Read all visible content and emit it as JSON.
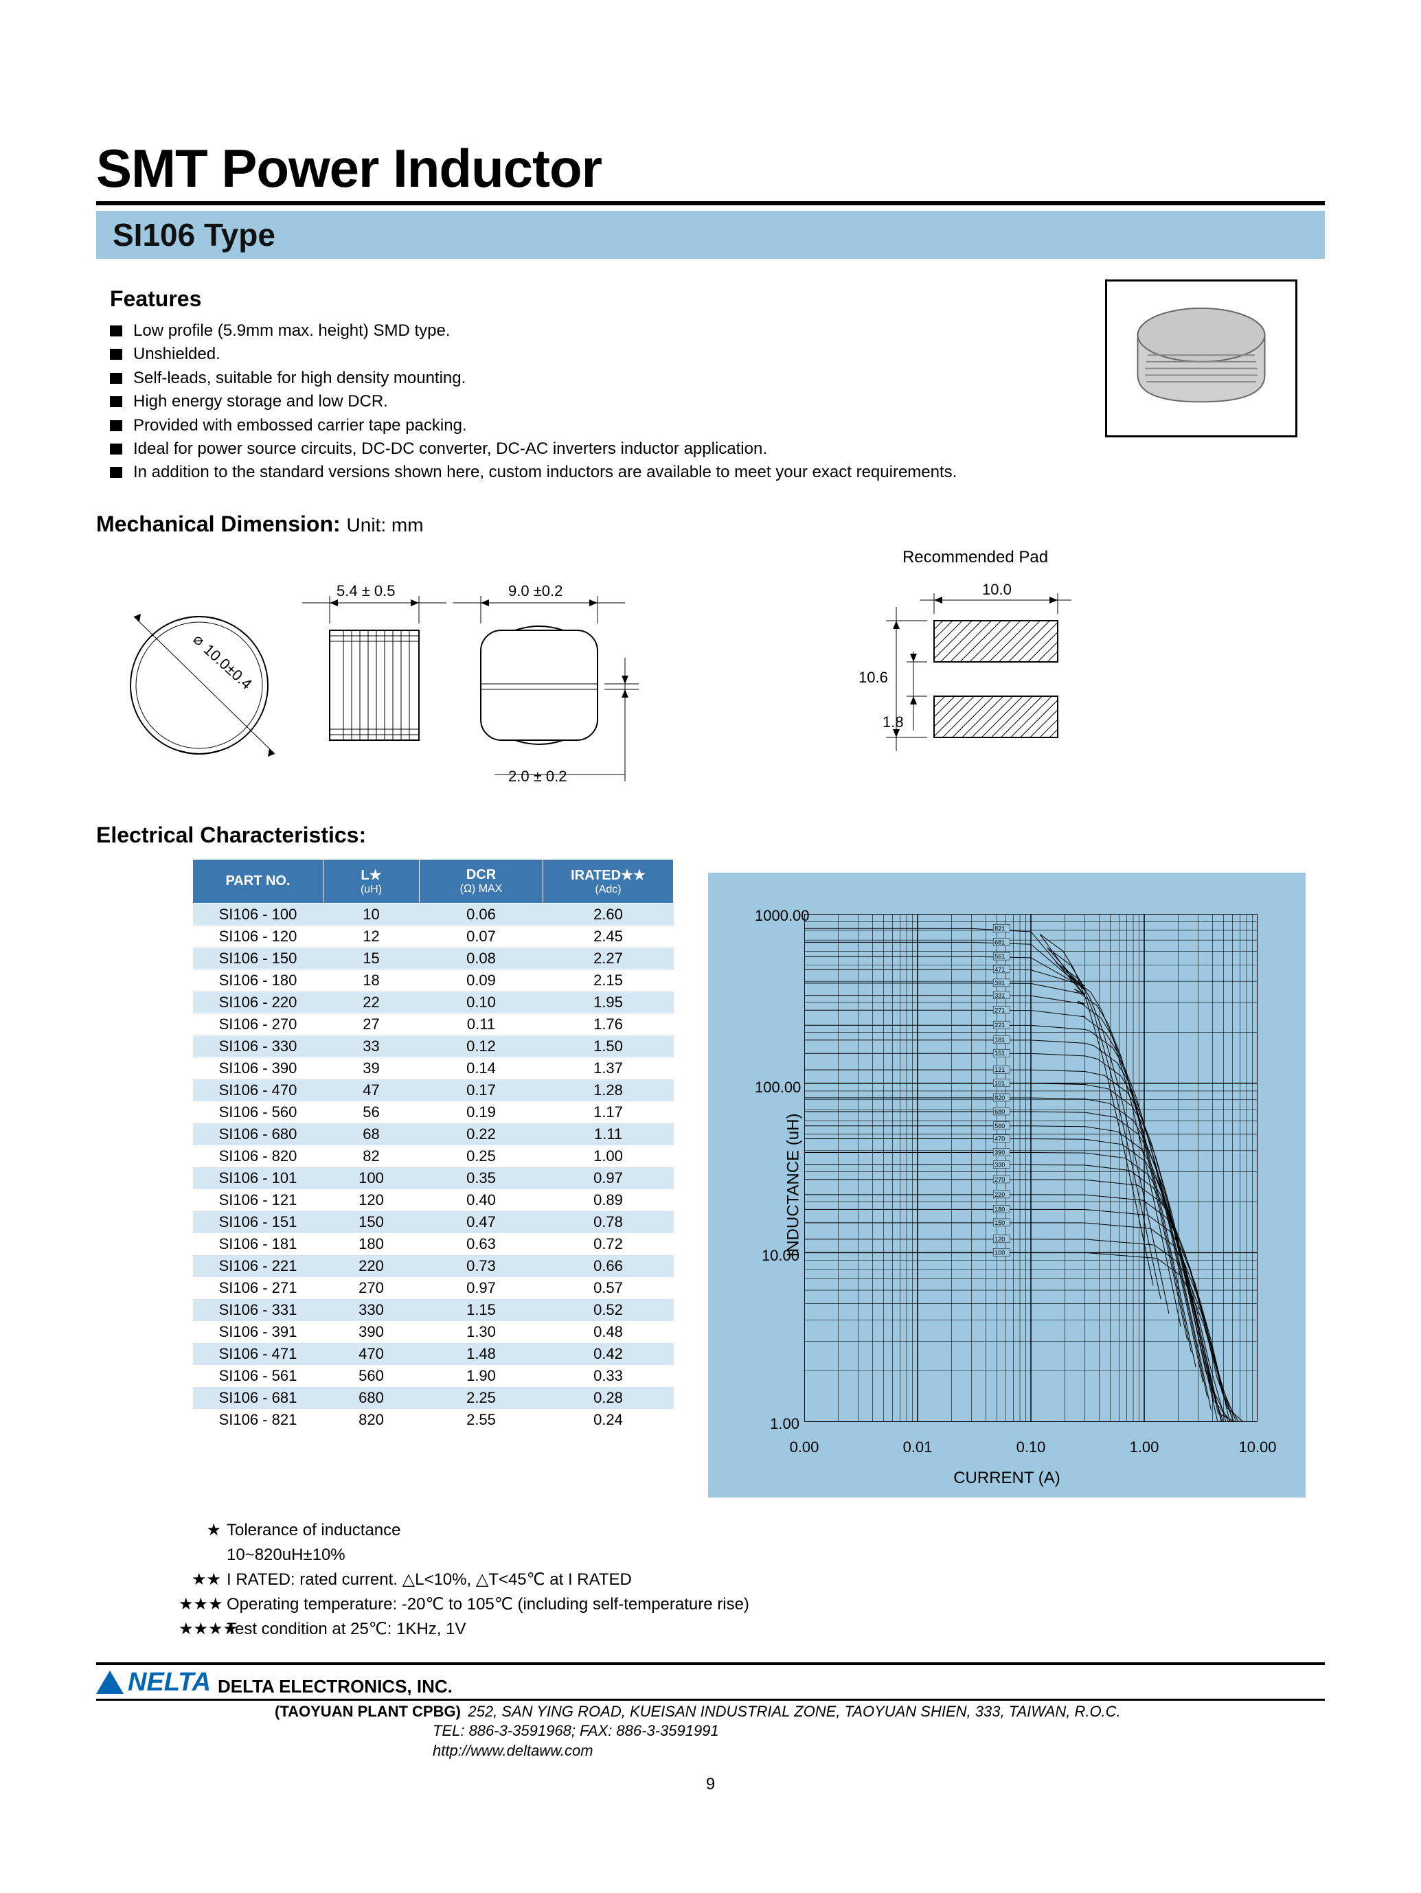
{
  "title": "SMT Power Inductor",
  "type_label": "SI106 Type",
  "features": {
    "heading": "Features",
    "items": [
      "Low profile (5.9mm max. height) SMD type.",
      "Unshielded.",
      "Self-leads, suitable for high density mounting.",
      "High energy storage and low DCR.",
      "Provided with embossed carrier tape packing.",
      "Ideal for power source circuits, DC-DC converter, DC-AC inverters inductor application.",
      "In addition to the standard versions shown here, custom inductors are available to meet your exact requirements."
    ]
  },
  "mech": {
    "heading": "Mechanical Dimension:",
    "unit": "Unit: mm",
    "rec_pad_label": "Recommended Pad",
    "dims": {
      "diameter": "10.0±0.4",
      "width": "5.4 ± 0.5",
      "depth": "9.0 ±0.2",
      "gap": "2.0 ± 0.2",
      "pad_w": "10.0",
      "pad_h": "10.6",
      "pad_gap": "1.8"
    }
  },
  "elec": {
    "heading": "Electrical Characteristics:",
    "columns": {
      "c1": "PART NO.",
      "c2_top": "L★",
      "c2_sub": "(uH)",
      "c3_top": "DCR",
      "c3_sub": "(Ω) MAX",
      "c4_top": "IRATED★★",
      "c4_sub": "(Adc)"
    },
    "rows": [
      [
        "SI106 - 100",
        "10",
        "0.06",
        "2.60"
      ],
      [
        "SI106 - 120",
        "12",
        "0.07",
        "2.45"
      ],
      [
        "SI106 - 150",
        "15",
        "0.08",
        "2.27"
      ],
      [
        "SI106 - 180",
        "18",
        "0.09",
        "2.15"
      ],
      [
        "SI106 - 220",
        "22",
        "0.10",
        "1.95"
      ],
      [
        "SI106 - 270",
        "27",
        "0.11",
        "1.76"
      ],
      [
        "SI106 - 330",
        "33",
        "0.12",
        "1.50"
      ],
      [
        "SI106 - 390",
        "39",
        "0.14",
        "1.37"
      ],
      [
        "SI106 - 470",
        "47",
        "0.17",
        "1.28"
      ],
      [
        "SI106 - 560",
        "56",
        "0.19",
        "1.17"
      ],
      [
        "SI106 - 680",
        "68",
        "0.22",
        "1.11"
      ],
      [
        "SI106 - 820",
        "82",
        "0.25",
        "1.00"
      ],
      [
        "SI106 - 101",
        "100",
        "0.35",
        "0.97"
      ],
      [
        "SI106 - 121",
        "120",
        "0.40",
        "0.89"
      ],
      [
        "SI106 - 151",
        "150",
        "0.47",
        "0.78"
      ],
      [
        "SI106 - 181",
        "180",
        "0.63",
        "0.72"
      ],
      [
        "SI106 - 221",
        "220",
        "0.73",
        "0.66"
      ],
      [
        "SI106 - 271",
        "270",
        "0.97",
        "0.57"
      ],
      [
        "SI106 - 331",
        "330",
        "1.15",
        "0.52"
      ],
      [
        "SI106 - 391",
        "390",
        "1.30",
        "0.48"
      ],
      [
        "SI106 - 471",
        "470",
        "1.48",
        "0.42"
      ],
      [
        "SI106 - 561",
        "560",
        "1.90",
        "0.33"
      ],
      [
        "SI106 - 681",
        "680",
        "2.25",
        "0.28"
      ],
      [
        "SI106 - 821",
        "820",
        "2.55",
        "0.24"
      ]
    ]
  },
  "chart": {
    "type": "line",
    "ylabel": "INDUCTANCE (uH)",
    "xlabel": "CURRENT (A)",
    "xscale": "log",
    "yscale": "log",
    "xlim": [
      0.001,
      10
    ],
    "ylim": [
      1,
      1000
    ],
    "xticks": [
      "0.00",
      "0.01",
      "0.10",
      "1.00",
      "10.00"
    ],
    "yticks": [
      "1.00",
      "10.00",
      "100.00",
      "1000.00"
    ],
    "series_labels": [
      "821",
      "681",
      "561",
      "471",
      "391",
      "331",
      "271",
      "221",
      "181",
      "151",
      "121",
      "101",
      "820",
      "680",
      "560",
      "470",
      "390",
      "330",
      "270",
      "220",
      "180",
      "150",
      "120",
      "100"
    ],
    "background_color": "#9ec8e0",
    "grid_color": "#000000",
    "line_color": "#000000",
    "line_width": 1,
    "label_fontsize": 24,
    "tick_fontsize": 22,
    "series_label_fontsize": 9
  },
  "notes": {
    "n1_stars": "★",
    "n1a": "Tolerance of inductance",
    "n1b": "10~820uH±10%",
    "n2_stars": "★★",
    "n2": "I RATED: rated current. △L<10%, △T<45℃  at I RATED",
    "n3_stars": "★★★",
    "n3": "Operating temperature: -20℃ to 105℃  (including self-temperature rise)",
    "n4_stars": "★★★★",
    "n4": "Test condition at 25℃: 1KHz, 1V"
  },
  "footer": {
    "logo_text": "NELTA",
    "company": "DELTA ELECTRONICS, INC.",
    "plant": "(TAOYUAN PLANT CPBG)",
    "addr1": "252, SAN YING ROAD, KUEISAN INDUSTRIAL ZONE, TAOYUAN SHIEN, 333, TAIWAN, R.O.C.",
    "addr2": "TEL: 886-3-3591968; FAX: 886-3-3591991",
    "url": "http://www.deltaww.com",
    "page": "9"
  },
  "colors": {
    "header_bar": "#9ec8e0",
    "table_header": "#3d77b0",
    "table_row_alt": "#d4e7f3",
    "logo": "#0066b3"
  }
}
